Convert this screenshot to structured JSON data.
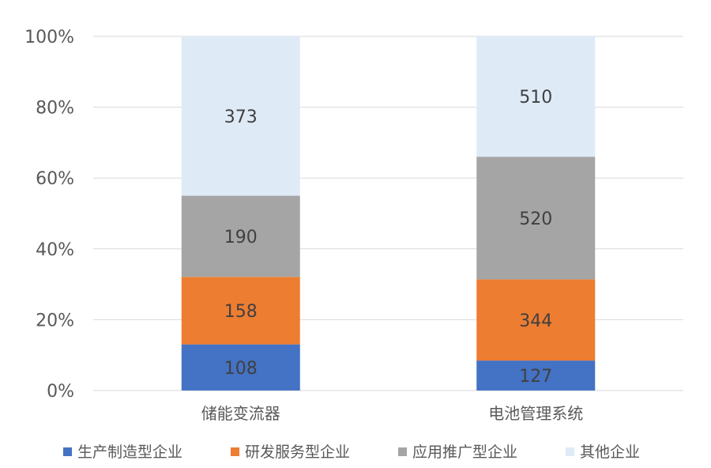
{
  "chart_data": {
    "type": "bar",
    "stacked": "percent",
    "categories": [
      "储能变流器",
      "电池管理系统"
    ],
    "series": [
      {
        "name": "生产制造型企业",
        "values": [
          108,
          127
        ],
        "color": "#4472C4"
      },
      {
        "name": "研发服务型企业",
        "values": [
          158,
          344
        ],
        "color": "#ED7D31"
      },
      {
        "name": "应用推广型企业",
        "values": [
          190,
          520
        ],
        "color": "#A5A5A5"
      },
      {
        "name": "其他企业",
        "values": [
          373,
          510
        ],
        "color": "#DEEBF7"
      }
    ],
    "y_ticks": [
      "0%",
      "20%",
      "40%",
      "60%",
      "80%",
      "100%"
    ],
    "ylim": [
      0,
      100
    ],
    "grid": true,
    "legend_position": "bottom"
  }
}
